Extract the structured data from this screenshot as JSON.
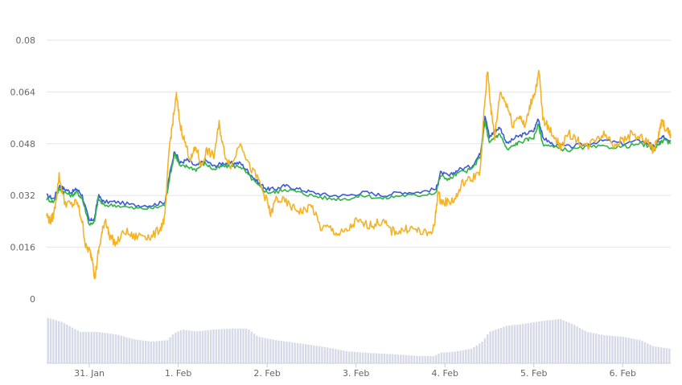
{
  "chart_data": {
    "type": "line",
    "title": "",
    "xlabel": "",
    "ylabel": "",
    "ylim": [
      0,
      0.08
    ],
    "y_ticks": [
      "0",
      "0.016",
      "0.032",
      "0.048",
      "0.064",
      "0.08"
    ],
    "x_ticks": [
      "31. Jan",
      "1. Feb",
      "2. Feb",
      "3. Feb",
      "4. Feb",
      "5. Feb",
      "6. Feb"
    ],
    "x_tick_days": [
      1,
      2,
      3,
      4,
      5,
      6,
      7
    ],
    "x_range_days": [
      0.52,
      7.54
    ],
    "grid": "horizontal",
    "legend": "none",
    "series": [
      {
        "color": "#3b5bdb",
        "points": [
          [
            0.52,
            0.032
          ],
          [
            0.6,
            0.031
          ],
          [
            0.66,
            0.035
          ],
          [
            0.72,
            0.034
          ],
          [
            0.8,
            0.033
          ],
          [
            0.86,
            0.034
          ],
          [
            0.92,
            0.032
          ],
          [
            1.0,
            0.024
          ],
          [
            1.06,
            0.025
          ],
          [
            1.1,
            0.032
          ],
          [
            1.16,
            0.03
          ],
          [
            1.3,
            0.03
          ],
          [
            1.5,
            0.029
          ],
          [
            1.7,
            0.029
          ],
          [
            1.85,
            0.03
          ],
          [
            1.9,
            0.038
          ],
          [
            1.96,
            0.046
          ],
          [
            2.02,
            0.042
          ],
          [
            2.1,
            0.043
          ],
          [
            2.2,
            0.041
          ],
          [
            2.3,
            0.043
          ],
          [
            2.4,
            0.041
          ],
          [
            2.5,
            0.042
          ],
          [
            2.6,
            0.042
          ],
          [
            2.7,
            0.042
          ],
          [
            2.8,
            0.039
          ],
          [
            2.9,
            0.036
          ],
          [
            3.0,
            0.034
          ],
          [
            3.1,
            0.034
          ],
          [
            3.2,
            0.035
          ],
          [
            3.35,
            0.034
          ],
          [
            3.5,
            0.033
          ],
          [
            3.7,
            0.032
          ],
          [
            3.9,
            0.032
          ],
          [
            4.1,
            0.033
          ],
          [
            4.3,
            0.032
          ],
          [
            4.5,
            0.033
          ],
          [
            4.7,
            0.033
          ],
          [
            4.9,
            0.034
          ],
          [
            4.95,
            0.039
          ],
          [
            5.05,
            0.038
          ],
          [
            5.15,
            0.04
          ],
          [
            5.3,
            0.041
          ],
          [
            5.4,
            0.045
          ],
          [
            5.45,
            0.057
          ],
          [
            5.5,
            0.05
          ],
          [
            5.56,
            0.052
          ],
          [
            5.62,
            0.053
          ],
          [
            5.7,
            0.048
          ],
          [
            5.8,
            0.05
          ],
          [
            5.9,
            0.051
          ],
          [
            6.0,
            0.052
          ],
          [
            6.05,
            0.056
          ],
          [
            6.1,
            0.05
          ],
          [
            6.2,
            0.048
          ],
          [
            6.4,
            0.047
          ],
          [
            6.6,
            0.048
          ],
          [
            6.8,
            0.049
          ],
          [
            7.0,
            0.048
          ],
          [
            7.2,
            0.049
          ],
          [
            7.3,
            0.048
          ],
          [
            7.35,
            0.047
          ],
          [
            7.4,
            0.049
          ],
          [
            7.46,
            0.05
          ],
          [
            7.54,
            0.049
          ]
        ]
      },
      {
        "color": "#2fb344",
        "points": [
          [
            0.52,
            0.031
          ],
          [
            0.6,
            0.03
          ],
          [
            0.66,
            0.034
          ],
          [
            0.72,
            0.033
          ],
          [
            0.8,
            0.032
          ],
          [
            0.86,
            0.033
          ],
          [
            0.92,
            0.031
          ],
          [
            1.0,
            0.023
          ],
          [
            1.06,
            0.024
          ],
          [
            1.1,
            0.031
          ],
          [
            1.16,
            0.029
          ],
          [
            1.3,
            0.029
          ],
          [
            1.5,
            0.028
          ],
          [
            1.7,
            0.028
          ],
          [
            1.85,
            0.029
          ],
          [
            1.9,
            0.037
          ],
          [
            1.96,
            0.045
          ],
          [
            2.02,
            0.041
          ],
          [
            2.1,
            0.041
          ],
          [
            2.2,
            0.04
          ],
          [
            2.3,
            0.042
          ],
          [
            2.4,
            0.04
          ],
          [
            2.5,
            0.041
          ],
          [
            2.6,
            0.041
          ],
          [
            2.7,
            0.041
          ],
          [
            2.8,
            0.038
          ],
          [
            2.9,
            0.035
          ],
          [
            3.0,
            0.033
          ],
          [
            3.1,
            0.033
          ],
          [
            3.2,
            0.034
          ],
          [
            3.35,
            0.033
          ],
          [
            3.5,
            0.032
          ],
          [
            3.7,
            0.031
          ],
          [
            3.9,
            0.031
          ],
          [
            4.1,
            0.032
          ],
          [
            4.3,
            0.031
          ],
          [
            4.5,
            0.032
          ],
          [
            4.7,
            0.032
          ],
          [
            4.9,
            0.033
          ],
          [
            4.95,
            0.038
          ],
          [
            5.05,
            0.037
          ],
          [
            5.15,
            0.039
          ],
          [
            5.3,
            0.04
          ],
          [
            5.4,
            0.044
          ],
          [
            5.45,
            0.055
          ],
          [
            5.5,
            0.048
          ],
          [
            5.56,
            0.05
          ],
          [
            5.62,
            0.051
          ],
          [
            5.7,
            0.046
          ],
          [
            5.8,
            0.048
          ],
          [
            5.9,
            0.049
          ],
          [
            6.0,
            0.05
          ],
          [
            6.05,
            0.054
          ],
          [
            6.1,
            0.048
          ],
          [
            6.2,
            0.047
          ],
          [
            6.4,
            0.046
          ],
          [
            6.6,
            0.047
          ],
          [
            6.8,
            0.047
          ],
          [
            7.0,
            0.047
          ],
          [
            7.2,
            0.048
          ],
          [
            7.3,
            0.047
          ],
          [
            7.35,
            0.046
          ],
          [
            7.4,
            0.048
          ],
          [
            7.46,
            0.049
          ],
          [
            7.54,
            0.048
          ]
        ]
      },
      {
        "color": "#f5b324",
        "points": [
          [
            0.52,
            0.026
          ],
          [
            0.56,
            0.024
          ],
          [
            0.6,
            0.026
          ],
          [
            0.66,
            0.038
          ],
          [
            0.72,
            0.03
          ],
          [
            0.8,
            0.029
          ],
          [
            0.86,
            0.03
          ],
          [
            0.92,
            0.024
          ],
          [
            0.96,
            0.016
          ],
          [
            1.0,
            0.015
          ],
          [
            1.04,
            0.012
          ],
          [
            1.06,
            0.006
          ],
          [
            1.1,
            0.014
          ],
          [
            1.14,
            0.02
          ],
          [
            1.18,
            0.025
          ],
          [
            1.22,
            0.02
          ],
          [
            1.3,
            0.017
          ],
          [
            1.4,
            0.021
          ],
          [
            1.5,
            0.019
          ],
          [
            1.6,
            0.02
          ],
          [
            1.7,
            0.019
          ],
          [
            1.8,
            0.022
          ],
          [
            1.85,
            0.025
          ],
          [
            1.9,
            0.047
          ],
          [
            1.94,
            0.055
          ],
          [
            1.98,
            0.063
          ],
          [
            2.02,
            0.054
          ],
          [
            2.08,
            0.048
          ],
          [
            2.14,
            0.043
          ],
          [
            2.2,
            0.047
          ],
          [
            2.26,
            0.041
          ],
          [
            2.32,
            0.046
          ],
          [
            2.4,
            0.044
          ],
          [
            2.46,
            0.054
          ],
          [
            2.52,
            0.045
          ],
          [
            2.6,
            0.041
          ],
          [
            2.7,
            0.049
          ],
          [
            2.8,
            0.041
          ],
          [
            2.9,
            0.037
          ],
          [
            3.0,
            0.03
          ],
          [
            3.04,
            0.026
          ],
          [
            3.1,
            0.031
          ],
          [
            3.2,
            0.03
          ],
          [
            3.3,
            0.028
          ],
          [
            3.4,
            0.027
          ],
          [
            3.5,
            0.029
          ],
          [
            3.6,
            0.022
          ],
          [
            3.7,
            0.022
          ],
          [
            3.8,
            0.02
          ],
          [
            3.9,
            0.021
          ],
          [
            4.0,
            0.024
          ],
          [
            4.1,
            0.023
          ],
          [
            4.2,
            0.023
          ],
          [
            4.3,
            0.024
          ],
          [
            4.4,
            0.021
          ],
          [
            4.5,
            0.021
          ],
          [
            4.6,
            0.022
          ],
          [
            4.7,
            0.021
          ],
          [
            4.8,
            0.02
          ],
          [
            4.88,
            0.022
          ],
          [
            4.92,
            0.033
          ],
          [
            4.96,
            0.03
          ],
          [
            5.04,
            0.03
          ],
          [
            5.12,
            0.031
          ],
          [
            5.2,
            0.036
          ],
          [
            5.3,
            0.037
          ],
          [
            5.4,
            0.04
          ],
          [
            5.44,
            0.058
          ],
          [
            5.48,
            0.071
          ],
          [
            5.52,
            0.058
          ],
          [
            5.56,
            0.05
          ],
          [
            5.62,
            0.064
          ],
          [
            5.7,
            0.06
          ],
          [
            5.76,
            0.054
          ],
          [
            5.84,
            0.057
          ],
          [
            5.9,
            0.053
          ],
          [
            5.96,
            0.06
          ],
          [
            6.02,
            0.065
          ],
          [
            6.06,
            0.07
          ],
          [
            6.1,
            0.056
          ],
          [
            6.16,
            0.053
          ],
          [
            6.24,
            0.05
          ],
          [
            6.3,
            0.047
          ],
          [
            6.4,
            0.051
          ],
          [
            6.5,
            0.049
          ],
          [
            6.6,
            0.047
          ],
          [
            6.7,
            0.05
          ],
          [
            6.8,
            0.051
          ],
          [
            6.9,
            0.048
          ],
          [
            7.0,
            0.049
          ],
          [
            7.1,
            0.051
          ],
          [
            7.2,
            0.05
          ],
          [
            7.3,
            0.048
          ],
          [
            7.34,
            0.046
          ],
          [
            7.4,
            0.05
          ],
          [
            7.44,
            0.055
          ],
          [
            7.5,
            0.052
          ],
          [
            7.54,
            0.051
          ]
        ]
      }
    ],
    "volume": {
      "color": "#d6dae8",
      "points": [
        [
          0.52,
          0.95
        ],
        [
          0.7,
          0.85
        ],
        [
          0.9,
          0.65
        ],
        [
          1.1,
          0.65
        ],
        [
          1.3,
          0.6
        ],
        [
          1.5,
          0.5
        ],
        [
          1.7,
          0.45
        ],
        [
          1.88,
          0.48
        ],
        [
          1.95,
          0.62
        ],
        [
          2.05,
          0.7
        ],
        [
          2.2,
          0.66
        ],
        [
          2.4,
          0.7
        ],
        [
          2.6,
          0.72
        ],
        [
          2.78,
          0.72
        ],
        [
          2.9,
          0.55
        ],
        [
          3.1,
          0.48
        ],
        [
          3.3,
          0.43
        ],
        [
          3.5,
          0.38
        ],
        [
          3.7,
          0.32
        ],
        [
          3.9,
          0.25
        ],
        [
          4.1,
          0.22
        ],
        [
          4.3,
          0.2
        ],
        [
          4.5,
          0.18
        ],
        [
          4.7,
          0.15
        ],
        [
          4.88,
          0.15
        ],
        [
          4.95,
          0.22
        ],
        [
          5.1,
          0.24
        ],
        [
          5.3,
          0.3
        ],
        [
          5.42,
          0.45
        ],
        [
          5.5,
          0.65
        ],
        [
          5.7,
          0.78
        ],
        [
          5.9,
          0.82
        ],
        [
          6.1,
          0.88
        ],
        [
          6.3,
          0.92
        ],
        [
          6.45,
          0.8
        ],
        [
          6.6,
          0.65
        ],
        [
          6.8,
          0.58
        ],
        [
          7.0,
          0.55
        ],
        [
          7.2,
          0.48
        ],
        [
          7.35,
          0.35
        ],
        [
          7.54,
          0.3
        ]
      ]
    }
  }
}
